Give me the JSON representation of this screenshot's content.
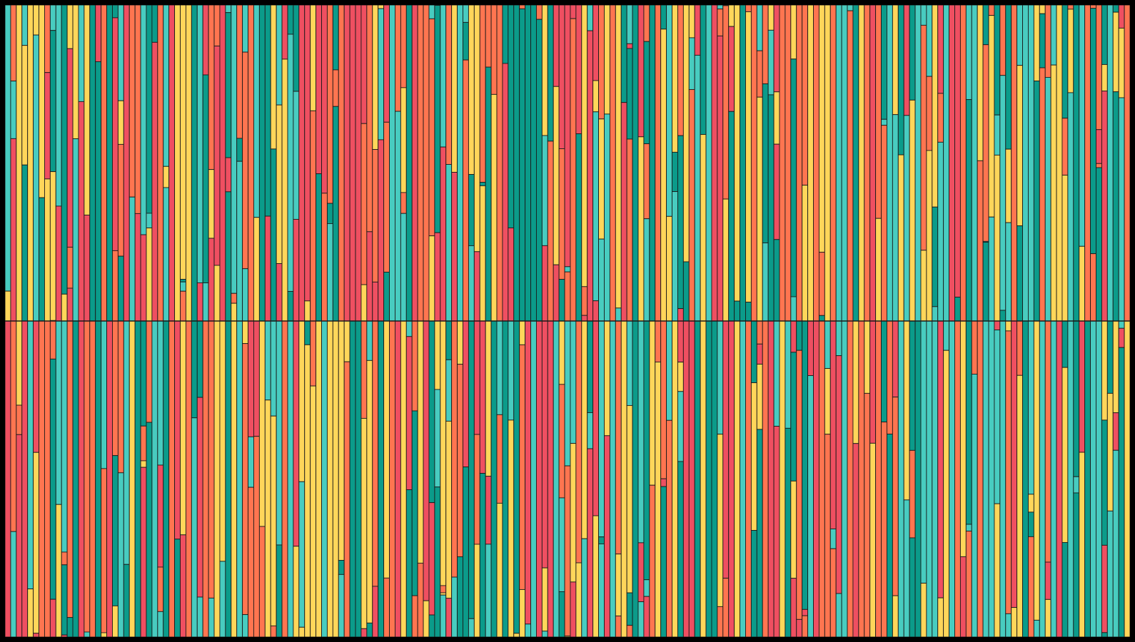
{
  "artwork": {
    "kind": "generative stripe pattern",
    "bands": 2,
    "columns_per_band": 199,
    "stroke_color": "#1a1a1a",
    "palette": [
      "#EF4F61",
      "#FF7550",
      "#FFD65A",
      "#48CCC0",
      "#0B9B8A"
    ],
    "palette_names": [
      "coral-red",
      "orange",
      "yellow",
      "turquoise",
      "teal"
    ]
  }
}
